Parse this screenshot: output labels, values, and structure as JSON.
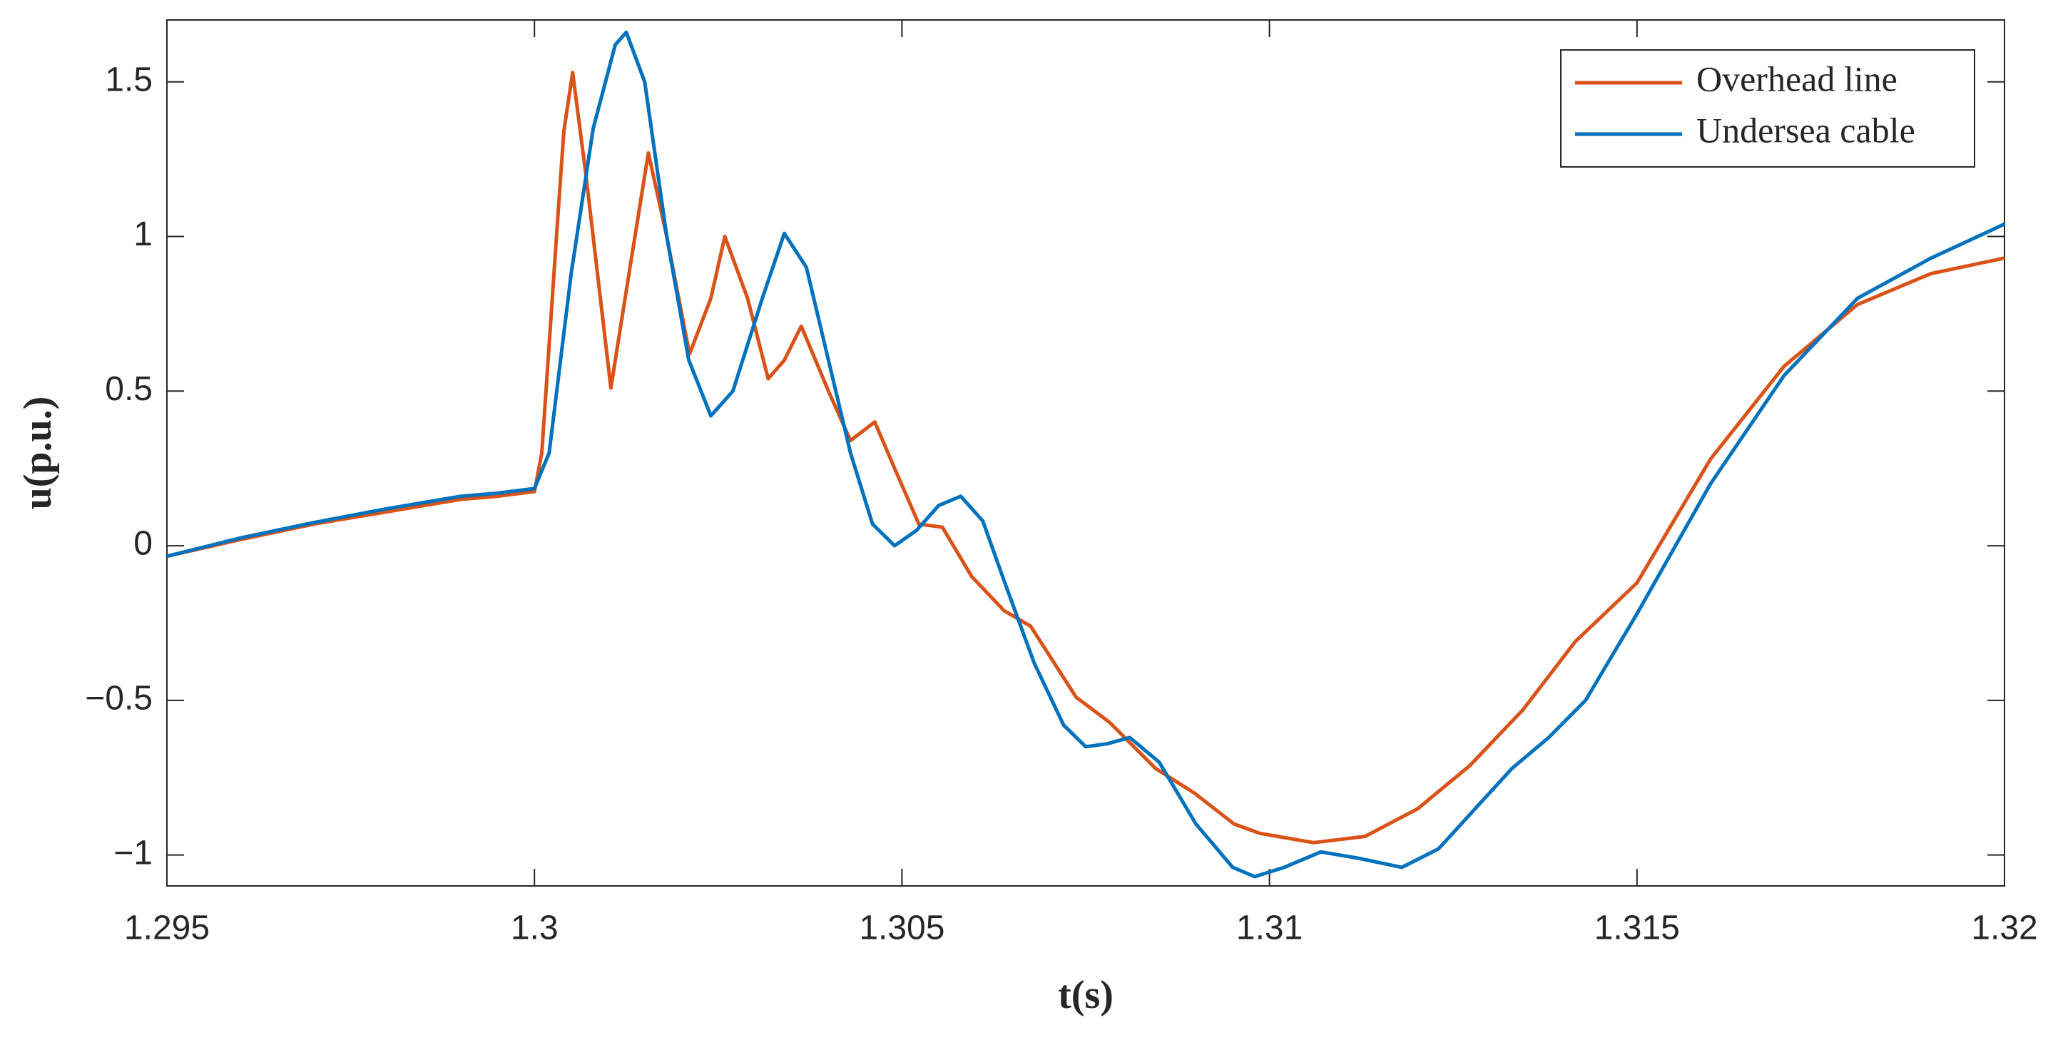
{
  "chart_data": {
    "type": "line",
    "xlabel": "t(s)",
    "ylabel": "u(p.u.)",
    "xlim": [
      1.295,
      1.32
    ],
    "xticks": [
      1.295,
      1.3,
      1.305,
      1.31,
      1.315,
      1.32
    ],
    "ylim": [
      -1.1,
      1.7
    ],
    "yticks": [
      {
        "value": -1,
        "label": "−1"
      },
      {
        "value": -0.5,
        "label": "−0.5"
      },
      0,
      0.5,
      1,
      1.5
    ],
    "grid": false,
    "legend": "upper right",
    "series": [
      {
        "name": "Overhead line",
        "color": "#d95319",
        "x": [
          1.295,
          1.296,
          1.297,
          1.298,
          1.299,
          1.2995,
          1.3,
          1.3001,
          1.3003,
          1.3004,
          1.30052,
          1.3007,
          1.30104,
          1.3013,
          1.30155,
          1.3018,
          1.30211,
          1.3024,
          1.30259,
          1.3029,
          1.30318,
          1.3034,
          1.30363,
          1.304,
          1.3043,
          1.30463,
          1.3049,
          1.30523,
          1.30555,
          1.30595,
          1.30639,
          1.30675,
          1.30737,
          1.30782,
          1.30845,
          1.30898,
          1.30952,
          1.30987,
          1.3106,
          1.3113,
          1.31202,
          1.31273,
          1.31345,
          1.31416,
          1.315,
          1.316,
          1.317,
          1.318,
          1.319,
          1.32
        ],
        "values": [
          -0.034,
          0.02,
          0.07,
          0.11,
          0.15,
          0.16,
          0.175,
          0.3,
          1.0,
          1.34,
          1.53,
          1.2,
          0.51,
          0.9,
          1.27,
          1.0,
          0.62,
          0.8,
          1.0,
          0.8,
          0.54,
          0.6,
          0.71,
          0.5,
          0.34,
          0.4,
          0.25,
          0.07,
          0.06,
          -0.1,
          -0.21,
          -0.26,
          -0.49,
          -0.57,
          -0.72,
          -0.8,
          -0.9,
          -0.93,
          -0.96,
          -0.94,
          -0.85,
          -0.71,
          -0.53,
          -0.31,
          -0.12,
          0.28,
          0.58,
          0.78,
          0.88,
          0.93
        ]
      },
      {
        "name": "Undersea cable",
        "color": "#0072bd",
        "x": [
          1.295,
          1.296,
          1.297,
          1.298,
          1.299,
          1.2995,
          1.3,
          1.3002,
          1.3005,
          1.3008,
          1.3011,
          1.30125,
          1.3015,
          1.3018,
          1.3021,
          1.3024,
          1.3027,
          1.3031,
          1.3034,
          1.3037,
          1.304,
          1.3043,
          1.3046,
          1.3049,
          1.3052,
          1.3055,
          1.3058,
          1.3061,
          1.3064,
          1.3068,
          1.3072,
          1.3075,
          1.3078,
          1.3081,
          1.3085,
          1.309,
          1.3095,
          1.3098,
          1.3102,
          1.3107,
          1.3112,
          1.3118,
          1.3123,
          1.3128,
          1.3133,
          1.3138,
          1.3143,
          1.315,
          1.316,
          1.317,
          1.318,
          1.319,
          1.32
        ],
        "values": [
          -0.034,
          0.025,
          0.075,
          0.12,
          0.16,
          0.17,
          0.185,
          0.3,
          0.88,
          1.35,
          1.62,
          1.66,
          1.5,
          1.0,
          0.6,
          0.42,
          0.5,
          0.8,
          1.01,
          0.9,
          0.6,
          0.3,
          0.07,
          0.0,
          0.05,
          0.13,
          0.16,
          0.08,
          -0.12,
          -0.38,
          -0.58,
          -0.65,
          -0.64,
          -0.62,
          -0.7,
          -0.9,
          -1.04,
          -1.07,
          -1.04,
          -0.99,
          -1.01,
          -1.04,
          -0.98,
          -0.85,
          -0.72,
          -0.62,
          -0.5,
          -0.22,
          0.2,
          0.55,
          0.8,
          0.93,
          1.04
        ]
      }
    ]
  }
}
